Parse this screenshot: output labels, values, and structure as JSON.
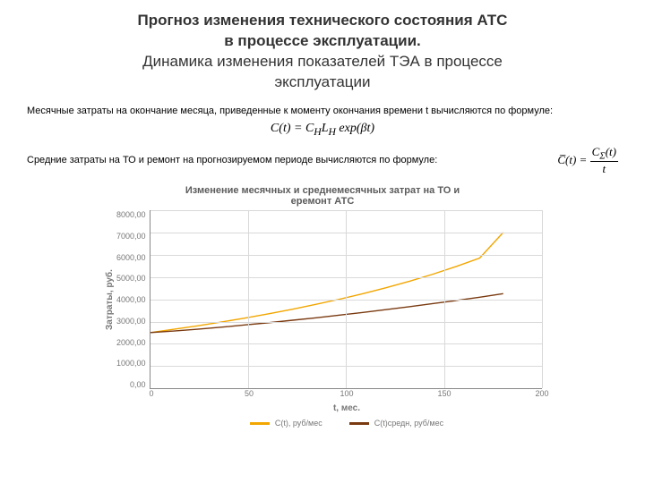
{
  "title": {
    "line1": "Прогноз изменения технического состояния АТС",
    "line2": "в процессе эксплуатации.",
    "line3": "Динамика изменения показателей ТЭА в процессе",
    "line4": "эксплуатации"
  },
  "para1": "Месячные затраты на окончание месяца, приведенные к моменту окончания времени t вычисляются по формуле:",
  "formula1": "C(t) = C_H L_H exp(βt)",
  "para2": "Средние затраты на ТО и ремонт на прогнозируемом периоде вычисляются по формуле:",
  "formula2": {
    "lhs": "C̅(t) =",
    "num": "C_Σ(t)",
    "den": "t"
  },
  "chart": {
    "type": "line",
    "title_line1": "Изменение месячных и среднемесячных затрат на ТО и",
    "title_line2": "еремонт АТС",
    "x_label": "t, мес.",
    "y_label": "Затраты, руб.",
    "x_ticks": [
      0,
      50,
      100,
      150,
      200
    ],
    "xlim": [
      0,
      200
    ],
    "y_ticks": [
      "0,00",
      "1000,00",
      "2000,00",
      "3000,00",
      "4000,00",
      "5000,00",
      "6000,00",
      "7000,00",
      "8000,00"
    ],
    "ylim": [
      0,
      8000
    ],
    "grid_color": "#d9d9d9",
    "background_color": "#ffffff",
    "label_color": "#777777",
    "title_fontsize": 11,
    "label_fontsize": 10,
    "tick_fontsize": 9,
    "line_width": 2.5,
    "series": [
      {
        "name": "C(t), руб/мес",
        "color": "#f2a600",
        "x": [
          0,
          12,
          24,
          36,
          48,
          60,
          72,
          84,
          96,
          108,
          120,
          132,
          144,
          156,
          168,
          180
        ],
        "y": [
          2500,
          2650,
          2800,
          2970,
          3150,
          3340,
          3540,
          3760,
          3990,
          4240,
          4510,
          4800,
          5120,
          5470,
          5850,
          7000
        ]
      },
      {
        "name": "C(t)средн, руб/мес",
        "color": "#7a3a10",
        "x": [
          0,
          12,
          24,
          36,
          48,
          60,
          72,
          84,
          96,
          108,
          120,
          132,
          144,
          156,
          168,
          180
        ],
        "y": [
          2500,
          2570,
          2650,
          2740,
          2840,
          2940,
          3050,
          3160,
          3280,
          3400,
          3530,
          3660,
          3800,
          3940,
          4090,
          4250
        ]
      }
    ]
  }
}
